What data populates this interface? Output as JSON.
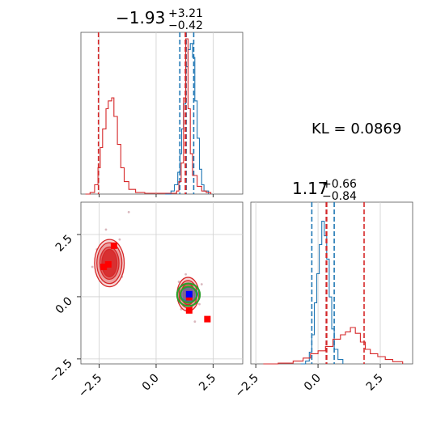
{
  "chart_data": [
    {
      "type": "histogram",
      "panel": "marginal-x",
      "title_main": "−1.93",
      "title_sup": "+3.21",
      "title_sub": "−0.42",
      "xlim": [
        -3.3,
        3.8
      ],
      "grid": true,
      "series": [
        {
          "color": "#1f77b4",
          "values": [
            [
              0.4,
              0
            ],
            [
              0.65,
              0.02
            ],
            [
              0.8,
              0.06
            ],
            [
              0.95,
              0.14
            ],
            [
              1.05,
              0.26
            ],
            [
              1.12,
              0.42
            ],
            [
              1.2,
              0.58
            ],
            [
              1.3,
              0.82
            ],
            [
              1.4,
              0.93
            ],
            [
              1.5,
              0.97
            ],
            [
              1.6,
              0.88
            ],
            [
              1.7,
              0.6
            ],
            [
              1.8,
              0.36
            ],
            [
              1.9,
              0.16
            ],
            [
              2.0,
              0.06
            ],
            [
              2.1,
              0.02
            ],
            [
              2.3,
              0
            ]
          ],
          "vlines": [
            1.04,
            1.32,
            1.65
          ]
        },
        {
          "color": "#d62728",
          "values": [
            [
              -3.1,
              0
            ],
            [
              -2.9,
              0.01
            ],
            [
              -2.7,
              0.06
            ],
            [
              -2.55,
              0.17
            ],
            [
              -2.45,
              0.3
            ],
            [
              -2.35,
              0.42
            ],
            [
              -2.2,
              0.55
            ],
            [
              -2.1,
              0.6
            ],
            [
              -1.95,
              0.62
            ],
            [
              -1.85,
              0.5
            ],
            [
              -1.7,
              0.32
            ],
            [
              -1.55,
              0.17
            ],
            [
              -1.4,
              0.08
            ],
            [
              -1.2,
              0.03
            ],
            [
              -0.9,
              0.01
            ],
            [
              -0.5,
              0.005
            ],
            [
              0.5,
              0.005
            ],
            [
              0.9,
              0.02
            ],
            [
              1.0,
              0.08
            ],
            [
              1.1,
              0.2
            ],
            [
              1.2,
              0.62
            ],
            [
              1.3,
              1.0
            ],
            [
              1.4,
              0.55
            ],
            [
              1.5,
              0.26
            ],
            [
              1.6,
              0.12
            ],
            [
              1.8,
              0.05
            ],
            [
              2.0,
              0.02
            ],
            [
              2.2,
              0.01
            ],
            [
              2.4,
              0
            ]
          ],
          "vlines": [
            -2.53,
            1.28,
            1.3
          ]
        }
      ]
    },
    {
      "type": "contour",
      "panel": "joint",
      "xlim": [
        -3.3,
        3.8
      ],
      "ylim": [
        -2.7,
        3.8
      ],
      "x_ticks": [
        "−2.5",
        "0.0",
        "2.5"
      ],
      "y_ticks": [
        "−2.5",
        "0.0",
        "2.5"
      ],
      "grid": true,
      "red_modes": [
        {
          "x": -2.05,
          "y": 1.35,
          "level_radii": [
            [
              0.65,
              0.95
            ],
            [
              0.55,
              0.82
            ],
            [
              0.42,
              0.65
            ],
            [
              0.33,
              0.55
            ]
          ]
        },
        {
          "x": 1.4,
          "y": 0.1,
          "level_radii": [
            [
              0.48,
              0.68
            ],
            [
              0.4,
              0.55
            ],
            [
              0.3,
              0.42
            ],
            [
              0.22,
              0.3
            ]
          ]
        }
      ],
      "blue_mode": {
        "x": 1.45,
        "y": 0.1,
        "rx": 0.38,
        "ry": 0.28
      },
      "green_rings": [
        {
          "x": 1.42,
          "y": 0.08,
          "r": 0.5
        },
        {
          "x": 1.42,
          "y": 0.08,
          "r": 0.36
        }
      ],
      "red_squares": [
        [
          -1.85,
          2.05
        ],
        [
          -2.1,
          1.3
        ],
        [
          -2.3,
          1.2
        ],
        [
          1.45,
          -0.55
        ],
        [
          2.25,
          -0.9
        ],
        [
          1.45,
          -0.02
        ]
      ],
      "blue_squares": [
        [
          1.45,
          0.1
        ]
      ]
    },
    {
      "type": "histogram",
      "panel": "marginal-y",
      "title_main": "1.17",
      "title_sup": "+0.66",
      "title_sub": "−0.84",
      "xlim": [
        -2.7,
        3.8
      ],
      "x_ticks": [
        "−2.5",
        "0.0",
        "2.5"
      ],
      "grid": true,
      "series": [
        {
          "color": "#1f77b4",
          "values": [
            [
              -0.7,
              0
            ],
            [
              -0.5,
              0.02
            ],
            [
              -0.35,
              0.08
            ],
            [
              -0.25,
              0.2
            ],
            [
              -0.15,
              0.42
            ],
            [
              -0.05,
              0.62
            ],
            [
              0.05,
              0.82
            ],
            [
              0.15,
              0.98
            ],
            [
              0.25,
              0.88
            ],
            [
              0.35,
              0.72
            ],
            [
              0.45,
              0.46
            ],
            [
              0.55,
              0.24
            ],
            [
              0.65,
              0.1
            ],
            [
              0.8,
              0.03
            ],
            [
              1.0,
              0
            ]
          ],
          "vlines": [
            -0.25,
            0.33,
            0.65
          ]
        },
        {
          "color": "#d62728",
          "values": [
            [
              -2.2,
              0
            ],
            [
              -1.6,
              0.005
            ],
            [
              -1.0,
              0.02
            ],
            [
              -0.6,
              0.04
            ],
            [
              -0.3,
              0.07
            ],
            [
              0.0,
              0.09
            ],
            [
              0.3,
              0.12
            ],
            [
              0.6,
              0.17
            ],
            [
              0.9,
              0.2
            ],
            [
              1.1,
              0.22
            ],
            [
              1.3,
              0.25
            ],
            [
              1.5,
              0.21
            ],
            [
              1.7,
              0.15
            ],
            [
              1.9,
              0.1
            ],
            [
              2.1,
              0.07
            ],
            [
              2.4,
              0.05
            ],
            [
              2.7,
              0.03
            ],
            [
              3.0,
              0.015
            ],
            [
              3.4,
              0
            ]
          ],
          "vlines": [
            0.33,
            0.35,
            1.85
          ]
        }
      ]
    }
  ],
  "kl_text": "KL = 0.0869"
}
